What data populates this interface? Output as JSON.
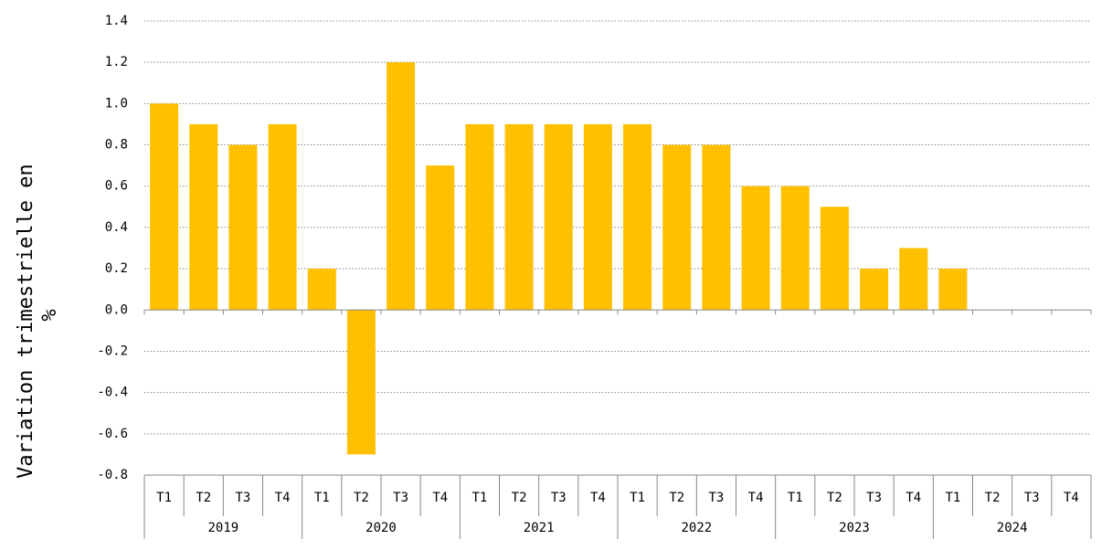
{
  "chart_data": {
    "type": "bar",
    "y_label": "Variation trimestrielle en %",
    "categories": [
      "T1",
      "T2",
      "T3",
      "T4",
      "T1",
      "T2",
      "T3",
      "T4",
      "T1",
      "T2",
      "T3",
      "T4",
      "T1",
      "T2",
      "T3",
      "T4",
      "T1",
      "T2",
      "T3",
      "T4",
      "T1",
      "T2",
      "T3",
      "T4"
    ],
    "groups": [
      "2019",
      "2020",
      "2021",
      "2022",
      "2023",
      "2024"
    ],
    "values": [
      1.0,
      0.9,
      0.8,
      0.9,
      0.2,
      -0.7,
      1.2,
      0.7,
      0.9,
      0.9,
      0.9,
      0.9,
      0.9,
      0.8,
      0.8,
      0.6,
      0.6,
      0.5,
      0.2,
      0.3,
      0.2,
      null,
      null,
      null
    ],
    "color": "#ffc000",
    "ylim": [
      -0.8,
      1.4
    ],
    "yticks": [
      -0.8,
      -0.6,
      -0.4,
      -0.2,
      {
        "value": 0,
        "label": "0.0"
      },
      0.2,
      0.4,
      0.6,
      0.8,
      {
        "value": 1,
        "label": "1.0"
      },
      1.2,
      1.4
    ],
    "grid": true
  }
}
